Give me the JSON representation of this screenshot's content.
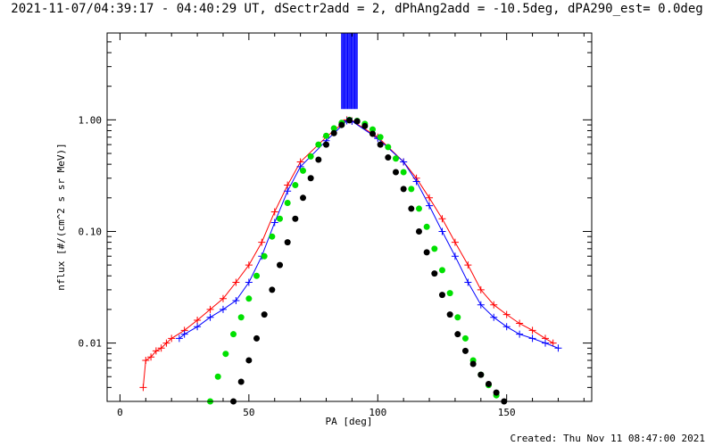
{
  "header": {
    "title": "2021-11-07/04:39:17 - 04:40:29 UT, dSectr2add = 2, dPhAng2add = -10.5deg, dPA290_est=  0.0deg",
    "created": "Created: Thu Nov 11 08:47:00 2021"
  },
  "chart_data": {
    "type": "scatter",
    "xlabel": "PA [deg]",
    "ylabel": "nflux [#/(cm^2 s sr MeV)]",
    "xlim": [
      -5,
      183
    ],
    "ylim": [
      0.003,
      6.0
    ],
    "yscale": "log",
    "x_ticks": [
      0,
      50,
      100,
      150
    ],
    "x_tick_labels": [
      "0",
      "50",
      "100",
      "150"
    ],
    "y_ticks": [
      0.01,
      0.1,
      1.0
    ],
    "y_tick_labels": [
      "0.01",
      "0.10",
      "1.00"
    ],
    "series": [
      {
        "name": "red sweeps",
        "color": "#ff0000",
        "marker": "plus",
        "points": [
          [
            9,
            0.004
          ],
          [
            10,
            0.007
          ],
          [
            12,
            0.0075
          ],
          [
            14,
            0.0085
          ],
          [
            16,
            0.009
          ],
          [
            18,
            0.01
          ],
          [
            20,
            0.011
          ],
          [
            25,
            0.013
          ],
          [
            30,
            0.016
          ],
          [
            35,
            0.02
          ],
          [
            40,
            0.025
          ],
          [
            45,
            0.035
          ],
          [
            50,
            0.05
          ],
          [
            55,
            0.08
          ],
          [
            60,
            0.15
          ],
          [
            65,
            0.26
          ],
          [
            70,
            0.42
          ],
          [
            80,
            0.7
          ],
          [
            88,
            1.0
          ],
          [
            90,
            0.98
          ],
          [
            100,
            0.7
          ],
          [
            110,
            0.42
          ],
          [
            115,
            0.3
          ],
          [
            120,
            0.2
          ],
          [
            125,
            0.13
          ],
          [
            130,
            0.08
          ],
          [
            135,
            0.05
          ],
          [
            140,
            0.03
          ],
          [
            145,
            0.022
          ],
          [
            150,
            0.018
          ],
          [
            155,
            0.015
          ],
          [
            160,
            0.013
          ],
          [
            165,
            0.011
          ],
          [
            168,
            0.01
          ]
        ]
      },
      {
        "name": "blue sweeps",
        "color": "#0000ff",
        "marker": "plus",
        "points": [
          [
            23,
            0.011
          ],
          [
            25,
            0.012
          ],
          [
            30,
            0.014
          ],
          [
            35,
            0.017
          ],
          [
            40,
            0.02
          ],
          [
            45,
            0.024
          ],
          [
            50,
            0.035
          ],
          [
            55,
            0.06
          ],
          [
            60,
            0.12
          ],
          [
            65,
            0.23
          ],
          [
            70,
            0.38
          ],
          [
            80,
            0.65
          ],
          [
            88,
            0.98
          ],
          [
            90,
            0.97
          ],
          [
            100,
            0.68
          ],
          [
            110,
            0.42
          ],
          [
            115,
            0.28
          ],
          [
            120,
            0.17
          ],
          [
            125,
            0.1
          ],
          [
            130,
            0.06
          ],
          [
            135,
            0.035
          ],
          [
            140,
            0.022
          ],
          [
            145,
            0.017
          ],
          [
            150,
            0.014
          ],
          [
            155,
            0.012
          ],
          [
            160,
            0.011
          ],
          [
            165,
            0.01
          ],
          [
            170,
            0.009
          ]
        ]
      },
      {
        "name": "green model",
        "color": "#00e000",
        "marker": "dot",
        "points": [
          [
            35,
            0.003
          ],
          [
            38,
            0.005
          ],
          [
            41,
            0.008
          ],
          [
            44,
            0.012
          ],
          [
            47,
            0.017
          ],
          [
            50,
            0.025
          ],
          [
            53,
            0.04
          ],
          [
            56,
            0.06
          ],
          [
            59,
            0.09
          ],
          [
            62,
            0.13
          ],
          [
            65,
            0.18
          ],
          [
            68,
            0.26
          ],
          [
            71,
            0.35
          ],
          [
            74,
            0.47
          ],
          [
            77,
            0.6
          ],
          [
            80,
            0.72
          ],
          [
            83,
            0.84
          ],
          [
            86,
            0.94
          ],
          [
            89,
            1.0
          ],
          [
            92,
            0.98
          ],
          [
            95,
            0.92
          ],
          [
            98,
            0.82
          ],
          [
            101,
            0.7
          ],
          [
            104,
            0.57
          ],
          [
            107,
            0.45
          ],
          [
            110,
            0.34
          ],
          [
            113,
            0.24
          ],
          [
            116,
            0.16
          ],
          [
            119,
            0.11
          ],
          [
            122,
            0.07
          ],
          [
            125,
            0.045
          ],
          [
            128,
            0.028
          ],
          [
            131,
            0.017
          ],
          [
            134,
            0.011
          ],
          [
            137,
            0.007
          ],
          [
            140,
            0.0052
          ],
          [
            143,
            0.0042
          ],
          [
            146,
            0.0034
          ]
        ]
      },
      {
        "name": "black model",
        "color": "#000000",
        "marker": "dot",
        "points": [
          [
            44,
            0.003
          ],
          [
            47,
            0.0045
          ],
          [
            50,
            0.007
          ],
          [
            53,
            0.011
          ],
          [
            56,
            0.018
          ],
          [
            59,
            0.03
          ],
          [
            62,
            0.05
          ],
          [
            65,
            0.08
          ],
          [
            68,
            0.13
          ],
          [
            71,
            0.2
          ],
          [
            74,
            0.3
          ],
          [
            77,
            0.44
          ],
          [
            80,
            0.6
          ],
          [
            83,
            0.76
          ],
          [
            86,
            0.9
          ],
          [
            89,
            0.99
          ],
          [
            92,
            0.97
          ],
          [
            95,
            0.88
          ],
          [
            98,
            0.75
          ],
          [
            101,
            0.6
          ],
          [
            104,
            0.46
          ],
          [
            107,
            0.34
          ],
          [
            110,
            0.24
          ],
          [
            113,
            0.16
          ],
          [
            116,
            0.1
          ],
          [
            119,
            0.065
          ],
          [
            122,
            0.042
          ],
          [
            125,
            0.027
          ],
          [
            128,
            0.018
          ],
          [
            131,
            0.012
          ],
          [
            134,
            0.0085
          ],
          [
            137,
            0.0065
          ],
          [
            140,
            0.0052
          ],
          [
            143,
            0.0043
          ],
          [
            146,
            0.0036
          ],
          [
            149,
            0.003
          ]
        ]
      }
    ],
    "vertical_band": {
      "x_from": 86,
      "x_to": 92,
      "y_from": 1.25,
      "y_to": 6.0,
      "color": "#0000ff"
    }
  }
}
